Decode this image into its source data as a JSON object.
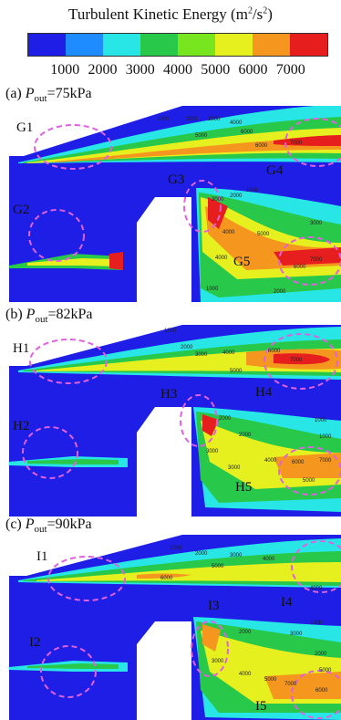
{
  "legend": {
    "title_main": "Turbulent Kinetic Energy (m",
    "title_sup1": "2",
    "title_mid": "/s",
    "title_sup2": "2",
    "title_end": ")",
    "ticks": [
      "1000",
      "2000",
      "3000",
      "4000",
      "5000",
      "6000",
      "7000"
    ],
    "colors": [
      "#1e1ee6",
      "#1e8cff",
      "#28e6e6",
      "#28c84b",
      "#78e61e",
      "#e6f01e",
      "#f5961e",
      "#e61e1e"
    ]
  },
  "panels": [
    {
      "tag": "(a) ",
      "pvar": "P",
      "psub": "out",
      "pval": "=75kPa",
      "labels": [
        "G1",
        "G2",
        "G3",
        "G4",
        "G5"
      ],
      "contours": [
        "1000",
        "2000",
        "3000",
        "4000",
        "5000",
        "6000",
        "6000",
        "7000",
        "1000",
        "2000",
        "3000",
        "4000",
        "5000",
        "6000",
        "7000",
        "1000",
        "2000",
        "3000",
        "4000"
      ]
    },
    {
      "tag": "(b) ",
      "pvar": "P",
      "psub": "out",
      "pval": "=82kPa",
      "labels": [
        "H1",
        "H2",
        "H3",
        "H4",
        "H5"
      ],
      "contours": [
        "1000",
        "2000",
        "3000",
        "4000",
        "5000",
        "6000",
        "7000",
        "1000",
        "2000",
        "3000",
        "4000",
        "5000",
        "6000",
        "7000",
        "1000",
        "2000",
        "3000"
      ]
    },
    {
      "tag": "(c) ",
      "pvar": "P",
      "psub": "out",
      "pval": "=90kPa",
      "labels": [
        "I1",
        "I2",
        "I3",
        "I4",
        "I5"
      ],
      "contours": [
        "1000",
        "2000",
        "3000",
        "4000",
        "5000",
        "6000",
        "4000",
        "1000",
        "2000",
        "3000",
        "4000",
        "5000",
        "6000",
        "7000",
        "2000",
        "3000",
        "5000"
      ]
    }
  ]
}
